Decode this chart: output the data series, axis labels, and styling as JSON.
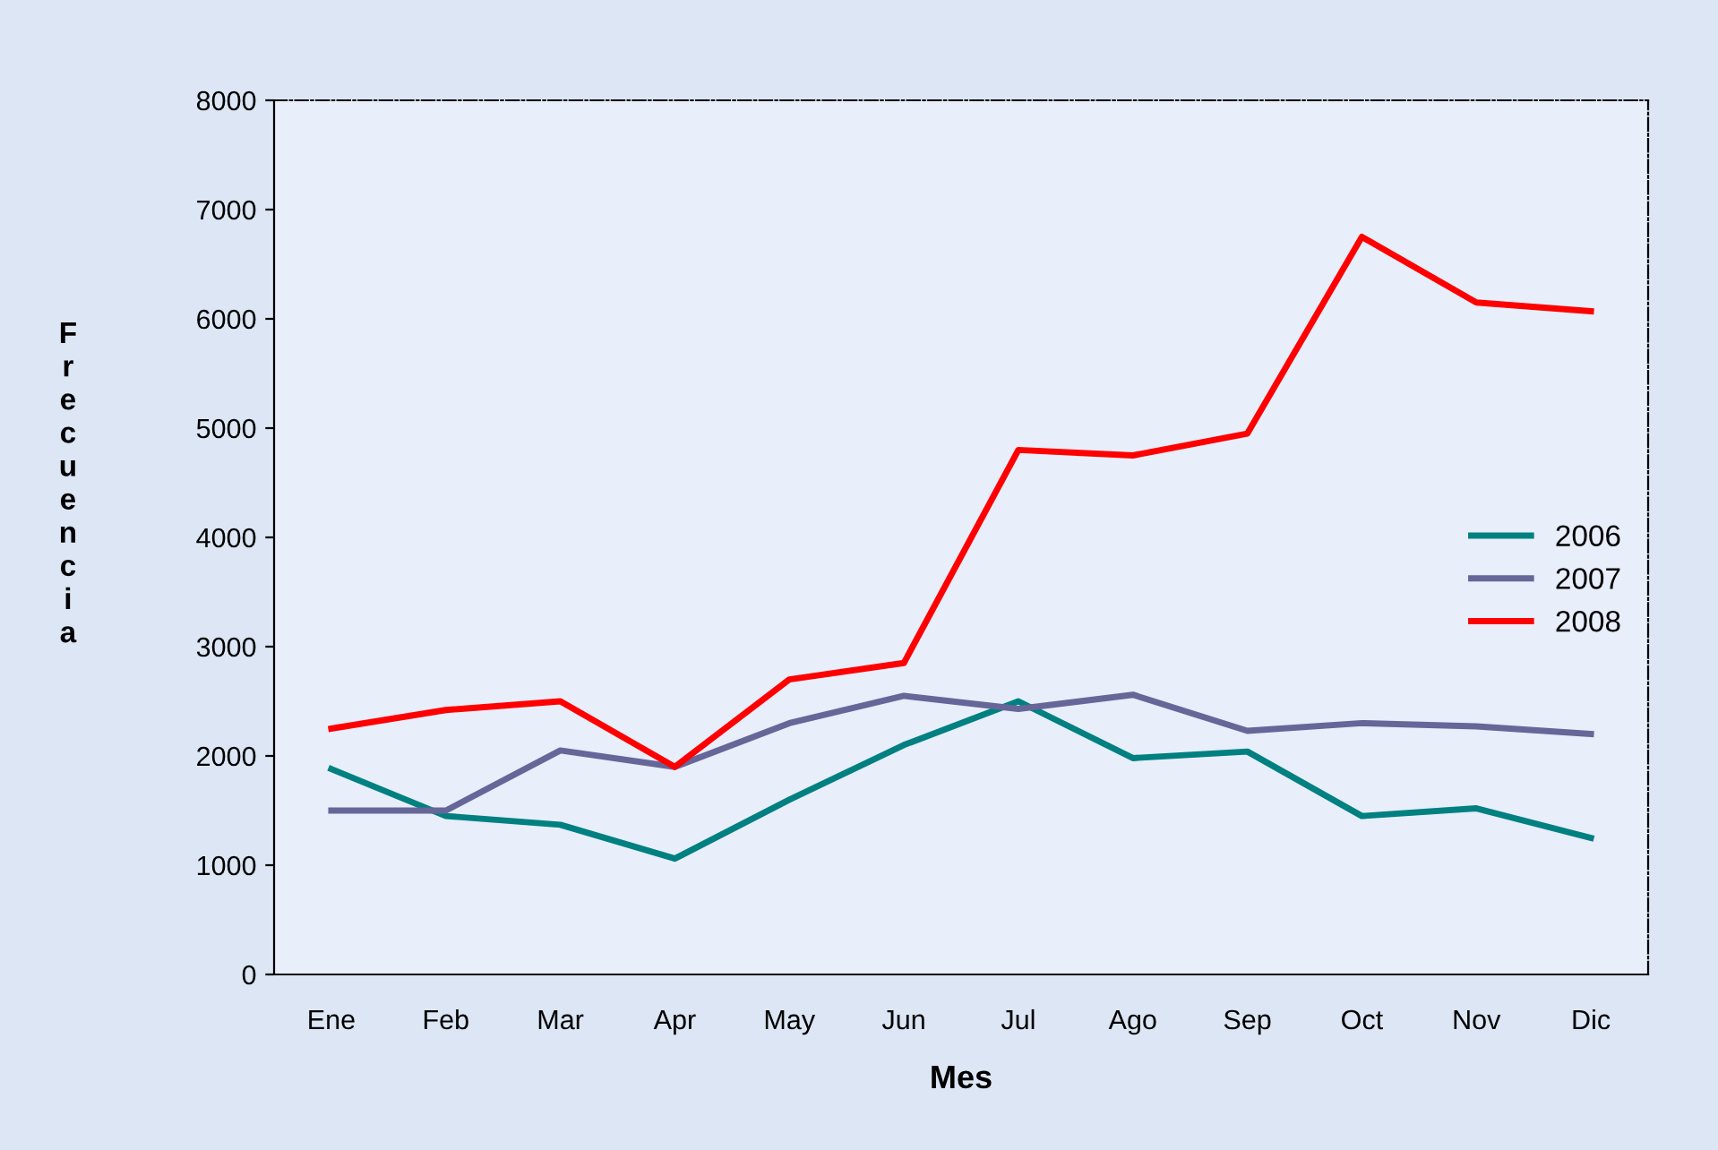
{
  "chart_data": {
    "type": "line",
    "xlabel": "Mes",
    "ylabel": "Frecuencia",
    "categories": [
      "Ene",
      "Feb",
      "Mar",
      "Apr",
      "May",
      "Jun",
      "Jul",
      "Ago",
      "Sep",
      "Oct",
      "Nov",
      "Dic"
    ],
    "series": [
      {
        "name": "2006",
        "color": "#008080",
        "values": [
          1880,
          1450,
          1370,
          1060,
          1600,
          2100,
          2500,
          1980,
          2040,
          1450,
          1520,
          1250
        ]
      },
      {
        "name": "2007",
        "color": "#666699",
        "values": [
          1500,
          1500,
          2050,
          1900,
          2300,
          2550,
          2430,
          2560,
          2230,
          2300,
          2270,
          2200
        ]
      },
      {
        "name": "2008",
        "color": "#ff0000",
        "values": [
          2250,
          2420,
          2500,
          1900,
          2700,
          2850,
          4800,
          4750,
          4950,
          6750,
          6150,
          6070
        ]
      }
    ],
    "ylim": [
      0,
      8000
    ],
    "yticks": [
      0,
      1000,
      2000,
      3000,
      4000,
      5000,
      6000,
      7000,
      8000
    ],
    "grid": false,
    "legend": "right",
    "marker": "none",
    "line_style": "solid"
  }
}
